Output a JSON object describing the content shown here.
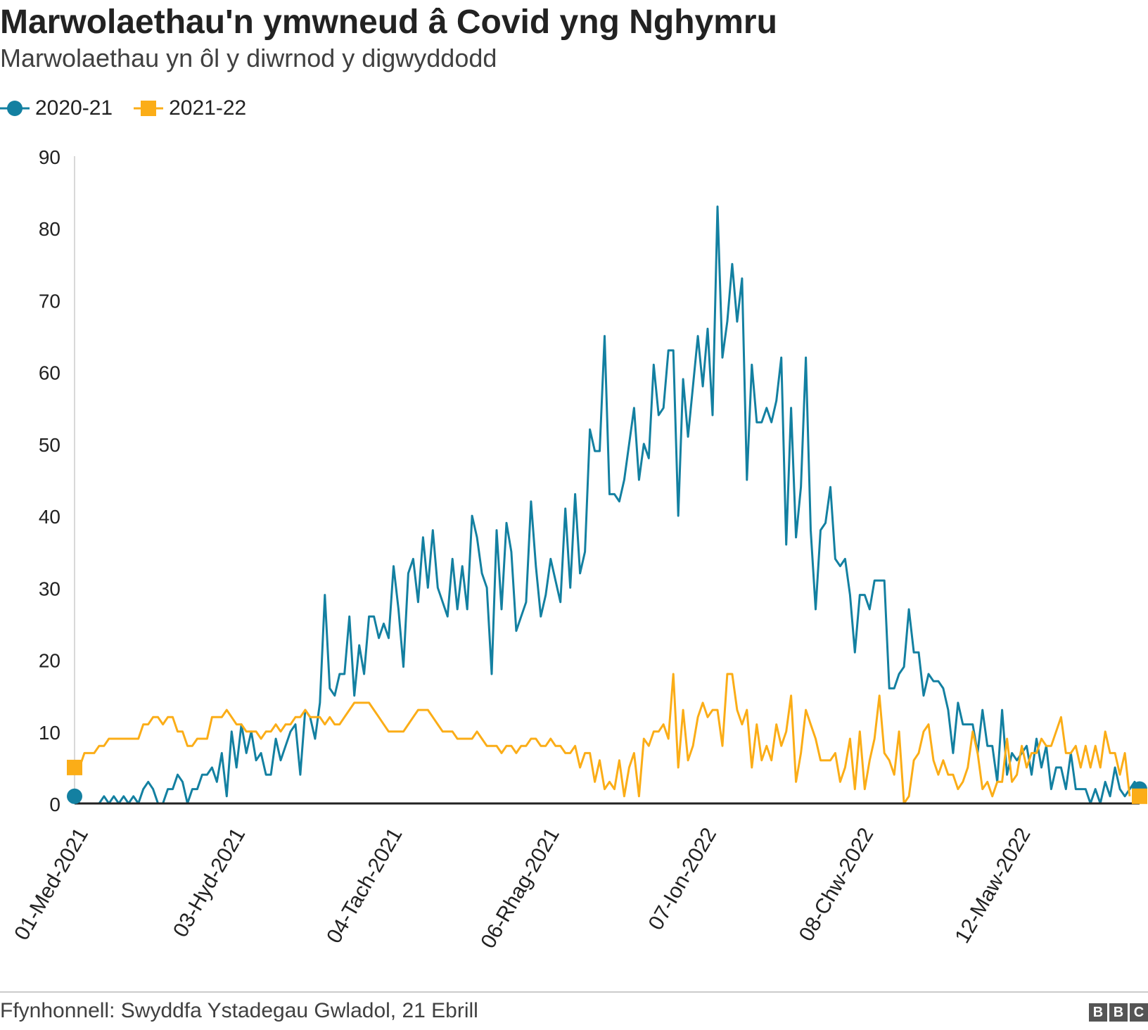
{
  "chart_data": {
    "type": "line",
    "title": "Marwolaethau'n ymwneud â Covid yng Nghymru",
    "subtitle": "Marwolaethau yn ôl y diwrnod y digwyddodd",
    "source": "Ffynhonnell: Swyddfa Ystadegau Gwladol, 21 Ebrill",
    "xlabel": "",
    "ylabel": "",
    "ylim": [
      0,
      90
    ],
    "y_ticks": [
      "0",
      "10",
      "20",
      "30",
      "40",
      "50",
      "60",
      "70",
      "80",
      "90"
    ],
    "x_tick_labels": [
      "01-Med-2021",
      "03-Hyd-2021",
      "04-Tach-2021",
      "06-Rhag-2021",
      "07-Ion-2022",
      "08-Chw-2022",
      "12-Maw-2022"
    ],
    "x_tick_days": [
      0,
      32,
      64,
      96,
      128,
      160,
      192
    ],
    "series": [
      {
        "name": "2020-21",
        "color": "#1380a1",
        "marker": "circle",
        "values": [
          1,
          0,
          0,
          0,
          0,
          0,
          1,
          0,
          1,
          0,
          1,
          0,
          1,
          0,
          2,
          3,
          2,
          0,
          0,
          2,
          2,
          4,
          3,
          0,
          2,
          2,
          4,
          4,
          5,
          3,
          7,
          1,
          10,
          5,
          11,
          7,
          10,
          6,
          7,
          4,
          4,
          9,
          6,
          8,
          10,
          11,
          4,
          13,
          12,
          9,
          14,
          29,
          16,
          15,
          18,
          18,
          26,
          15,
          22,
          18,
          26,
          26,
          23,
          25,
          23,
          33,
          27,
          19,
          32,
          34,
          28,
          37,
          30,
          38,
          30,
          28,
          26,
          34,
          27,
          33,
          27,
          40,
          37,
          32,
          30,
          18,
          38,
          27,
          39,
          35,
          24,
          26,
          28,
          42,
          33,
          26,
          29,
          34,
          31,
          28,
          41,
          30,
          43,
          32,
          35,
          52,
          49,
          49,
          65,
          43,
          43,
          42,
          45,
          50,
          55,
          45,
          50,
          48,
          61,
          54,
          55,
          63,
          63,
          40,
          59,
          51,
          58,
          65,
          58,
          66,
          54,
          83,
          62,
          67,
          75,
          67,
          73,
          45,
          61,
          53,
          53,
          55,
          53,
          56,
          62,
          36,
          55,
          37,
          44,
          62,
          38,
          27,
          38,
          39,
          44,
          34,
          33,
          34,
          29,
          21,
          29,
          29,
          27,
          31,
          31,
          31,
          16,
          16,
          18,
          19,
          27,
          21,
          21,
          15,
          18,
          17,
          17,
          16,
          13,
          7,
          14,
          11,
          11,
          11,
          7,
          13,
          8,
          8,
          3,
          13,
          4,
          7,
          6,
          7,
          8,
          4,
          9,
          5,
          8,
          2,
          5,
          5,
          2,
          7,
          2,
          2,
          2,
          0,
          2,
          0,
          3,
          1,
          5,
          2,
          1,
          2,
          3,
          2
        ]
      },
      {
        "name": "2021-22",
        "color": "#fbad17",
        "marker": "square",
        "values": [
          5,
          5,
          7,
          7,
          7,
          8,
          8,
          9,
          9,
          9,
          9,
          9,
          9,
          9,
          11,
          11,
          12,
          12,
          11,
          12,
          12,
          10,
          10,
          8,
          8,
          9,
          9,
          9,
          12,
          12,
          12,
          13,
          12,
          11,
          11,
          10,
          10,
          10,
          9,
          10,
          10,
          11,
          10,
          11,
          11,
          12,
          12,
          13,
          12,
          12,
          12,
          11,
          12,
          11,
          11,
          12,
          13,
          14,
          14,
          14,
          14,
          13,
          12,
          11,
          10,
          10,
          10,
          10,
          11,
          12,
          13,
          13,
          13,
          12,
          11,
          10,
          10,
          10,
          9,
          9,
          9,
          9,
          10,
          9,
          8,
          8,
          8,
          7,
          8,
          8,
          7,
          8,
          8,
          9,
          9,
          8,
          8,
          9,
          8,
          8,
          7,
          7,
          8,
          5,
          7,
          7,
          3,
          6,
          2,
          3,
          2,
          6,
          1,
          5,
          7,
          1,
          9,
          8,
          10,
          10,
          11,
          9,
          18,
          5,
          13,
          6,
          8,
          12,
          14,
          12,
          13,
          13,
          8,
          18,
          18,
          13,
          11,
          13,
          5,
          11,
          6,
          8,
          6,
          11,
          8,
          10,
          15,
          3,
          7,
          13,
          11,
          9,
          6,
          6,
          6,
          7,
          3,
          5,
          9,
          2,
          10,
          2,
          6,
          9,
          15,
          7,
          6,
          4,
          10,
          0,
          1,
          6,
          7,
          10,
          11,
          6,
          4,
          6,
          4,
          4,
          2,
          3,
          5,
          10,
          7,
          2,
          3,
          1,
          3,
          3,
          9,
          3,
          4,
          8,
          5,
          7,
          7,
          9,
          8,
          8,
          10,
          12,
          7,
          7,
          8,
          5,
          8,
          5,
          8,
          5,
          10,
          7,
          7,
          4,
          7,
          1
        ]
      }
    ]
  }
}
